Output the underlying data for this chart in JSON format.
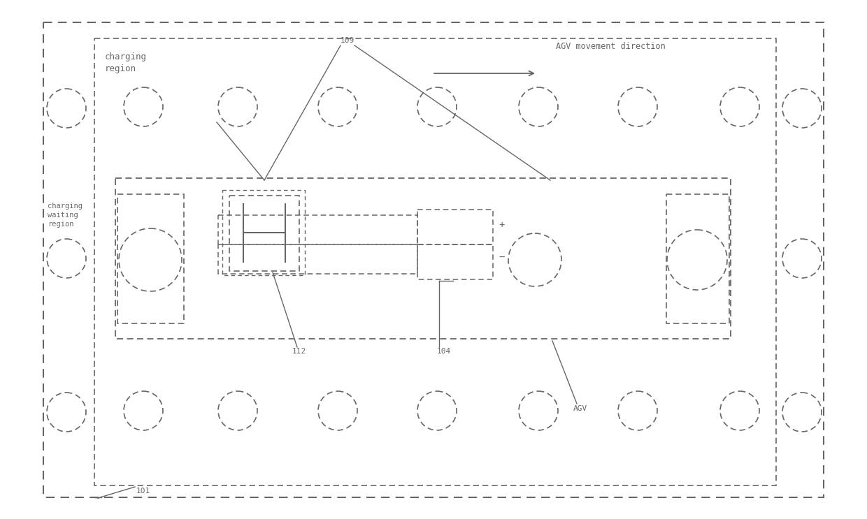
{
  "bg_color": "#ffffff",
  "lc": "#666666",
  "fig_width": 12.4,
  "fig_height": 7.43,
  "title_label": "AGV movement direction",
  "label_101": "101",
  "label_109": "109",
  "label_112": "112",
  "label_104": "104",
  "label_AGV": "AGV",
  "label_charging_region": "charging\nregion",
  "label_charging_waiting": "charging\nwaiting\nregion"
}
